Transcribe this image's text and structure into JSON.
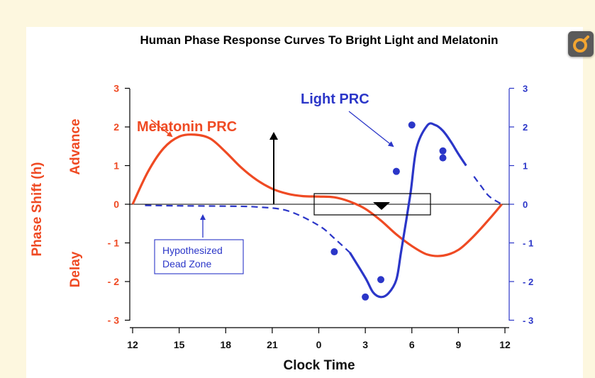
{
  "chart_data": {
    "type": "line",
    "title": "Human Phase Response Curves To Bright Light and Melatonin",
    "xlabel": "Clock Time",
    "ylabel": "Phase Shift (h)",
    "ylabel_advance": "Advance",
    "ylabel_delay": "Delay",
    "x_range": [
      12,
      36
    ],
    "x_ticks": [
      12,
      15,
      18,
      21,
      24,
      27,
      30,
      33,
      36
    ],
    "x_tick_labels": [
      "12",
      "15",
      "18",
      "21",
      "0",
      "3",
      "6",
      "9",
      "12"
    ],
    "ylim": [
      -3,
      3
    ],
    "y_ticks_left": [
      "3",
      "2",
      "1",
      "0",
      "- 1",
      "- 2",
      "- 3"
    ],
    "y_ticks_right": [
      "3",
      "2",
      "1",
      "0",
      "- 1",
      "- 2",
      "- 3"
    ],
    "series": [
      {
        "name": "Melatonin PRC",
        "color": "#ef4a23",
        "x": [
          12,
          13,
          14,
          15,
          16,
          17,
          18,
          19,
          20,
          21,
          22,
          23,
          24,
          25,
          26,
          27,
          28,
          29,
          30,
          31,
          32,
          33,
          34,
          35,
          35.8
        ],
        "y": [
          0.0,
          0.85,
          1.45,
          1.75,
          1.8,
          1.7,
          1.35,
          0.95,
          0.63,
          0.4,
          0.27,
          0.21,
          0.2,
          0.18,
          0.07,
          -0.12,
          -0.42,
          -0.78,
          -1.08,
          -1.3,
          -1.33,
          -1.18,
          -0.82,
          -0.38,
          0.0
        ]
      },
      {
        "name": "Light PRC",
        "color": "#2b36c8",
        "dashed_x": [
          [
            12.8,
            26.0
          ],
          [
            33.9,
            35.8
          ]
        ],
        "x": [
          12.8,
          15,
          18,
          20,
          22,
          24,
          25,
          26,
          27,
          27.5,
          28,
          28.5,
          29,
          29.3,
          29.9,
          30.3,
          31,
          31.5,
          32,
          32.5,
          33,
          33.5,
          34,
          34.5,
          35,
          35.8
        ],
        "y": [
          -0.03,
          -0.04,
          -0.05,
          -0.07,
          -0.17,
          -0.55,
          -0.88,
          -1.25,
          -1.9,
          -2.28,
          -2.4,
          -2.3,
          -1.95,
          -1.25,
          0.25,
          1.45,
          2.04,
          2.05,
          1.9,
          1.63,
          1.3,
          1.0,
          0.72,
          0.45,
          0.2,
          0.0
        ],
        "markers": [
          [
            25.0,
            -1.23
          ],
          [
            27.0,
            -2.4
          ],
          [
            28.0,
            -1.95
          ],
          [
            29.0,
            0.85
          ],
          [
            30.0,
            2.05
          ],
          [
            32.0,
            1.38
          ],
          [
            32.0,
            1.2
          ]
        ]
      }
    ],
    "annotations": [
      {
        "text": "Melatonin PRC",
        "color": "#ef4a23"
      },
      {
        "text": "Light PRC",
        "color": "#2b36c8"
      },
      {
        "text": "Hypothesized",
        "color": "#2b36c8"
      },
      {
        "text": "Dead Zone",
        "color": "#2b36c8"
      }
    ],
    "grid": false,
    "legend": "none"
  }
}
